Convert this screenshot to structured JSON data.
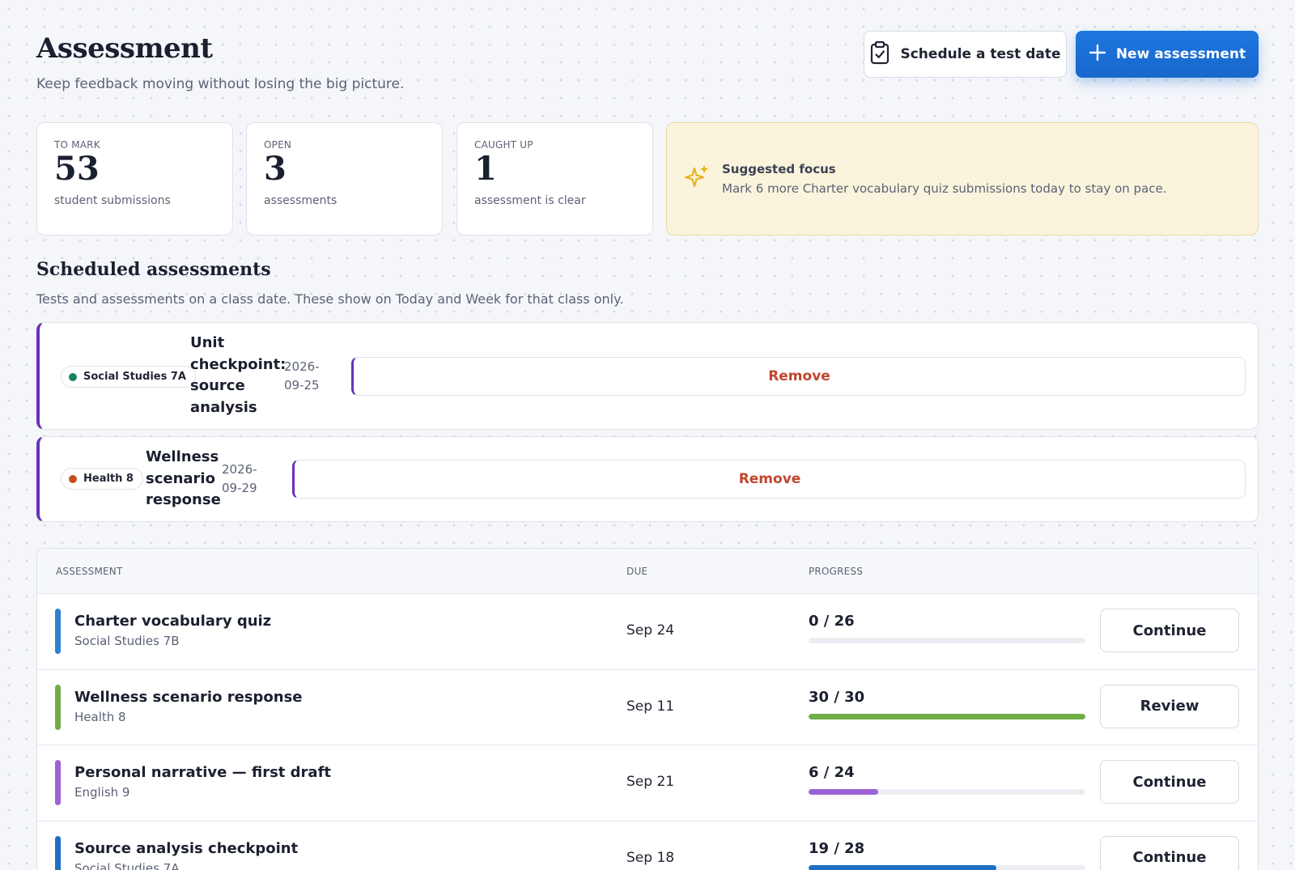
{
  "header": {
    "title": "Assessment",
    "subtitle": "Keep feedback moving without losing the big picture.",
    "schedule_button": "Schedule a test date",
    "new_button": "New assessment"
  },
  "stats": [
    {
      "label": "TO MARK",
      "value": "53",
      "caption": "student submissions"
    },
    {
      "label": "OPEN",
      "value": "3",
      "caption": "assessments"
    },
    {
      "label": "CAUGHT UP",
      "value": "1",
      "caption": "assessment is clear"
    }
  ],
  "focus": {
    "title": "Suggested focus",
    "text": "Mark 6 more Charter vocabulary quiz submissions today to stay on pace.",
    "icon": "sparkle-icon"
  },
  "scheduled": {
    "title": "Scheduled assessments",
    "subtitle": "Tests and assessments on a class date. These show on Today and Week for that class only.",
    "items": [
      {
        "class": "Social Studies 7A",
        "dot_color": "#14855a",
        "name_lines": [
          "Unit",
          "checkpoint:",
          "source",
          "analysis"
        ],
        "date_lines": [
          "2026-",
          "09-25"
        ],
        "remove": "Remove"
      },
      {
        "class": "Health 8",
        "dot_color": "#c4501a",
        "name_lines": [
          "Wellness",
          "scenario",
          "response"
        ],
        "date_lines": [
          "2026-",
          "09-29"
        ],
        "remove": "Remove"
      }
    ]
  },
  "table": {
    "headers": {
      "assessment": "ASSESSMENT",
      "due": "DUE",
      "progress": "PROGRESS"
    },
    "rows": [
      {
        "title": "Charter vocabulary quiz",
        "class": "Social Studies 7B",
        "due": "Sep 24",
        "progress_text": "0 / 26",
        "progress": 0,
        "color": "#2f7ed0",
        "action": "Continue"
      },
      {
        "title": "Wellness scenario response",
        "class": "Health 8",
        "due": "Sep 11",
        "progress_text": "30 / 30",
        "progress": 1,
        "color": "#6fae45",
        "action": "Review"
      },
      {
        "title": "Personal narrative — first draft",
        "class": "English 9",
        "due": "Sep 21",
        "progress_text": "6 / 24",
        "progress": 0.25,
        "color": "#9a63d6",
        "action": "Continue"
      },
      {
        "title": "Source analysis checkpoint",
        "class": "Social Studies 7A",
        "due": "Sep 18",
        "progress_text": "19 / 28",
        "progress": 0.6786,
        "color": "#1f6fc6",
        "action": "Continue"
      }
    ]
  },
  "colors": {
    "accent": "#1866cc",
    "scheduled_border": "#6a2fb8",
    "remove_text": "#c2452d",
    "focus_bg": "#fbf4dd",
    "sparkle": "#e6b21e"
  }
}
